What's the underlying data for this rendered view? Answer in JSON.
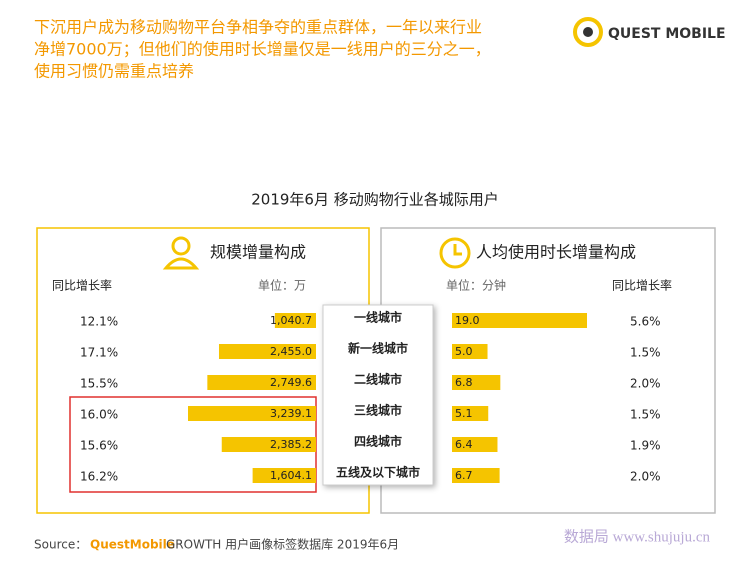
{
  "header": {
    "title_lines": [
      "下沉用户成为移动购物平台争相争夺的重点群体，一年以来行业",
      "净增7000万；但他们的使用时长增量仅是一线用户的三分之一，",
      "使用习惯仍需重点培养"
    ],
    "logo": "QUEST MOBILE"
  },
  "chart_data": {
    "type": "bar",
    "title": "2019年6月 移动购物行业各城际用户",
    "categories": [
      "一线城市",
      "新一线城市",
      "二线城市",
      "三线城市",
      "四线城市",
      "五线及以下城市"
    ],
    "series": [
      {
        "name": "规模增量构成",
        "unit": "单位：万",
        "color": "#f5c400",
        "growth_title": "同比增长率",
        "values": [
          1040.7,
          2455.0,
          2749.6,
          3239.1,
          2385.2,
          1604.1
        ],
        "value_labels": [
          "1,040.7",
          "2,455.0",
          "2,749.6",
          "3,239.1",
          "2,385.2",
          "1,604.1"
        ],
        "growth": [
          12.1,
          17.1,
          15.5,
          16.0,
          15.6,
          16.2
        ],
        "growth_labels": [
          "12.1%",
          "17.1%",
          "15.5%",
          "16.0%",
          "15.6%",
          "16.2%"
        ]
      },
      {
        "name": "人均使用时长增量构成",
        "unit": "单位：分钟",
        "color": "#f5c400",
        "growth_title": "同比增长率",
        "values": [
          19.0,
          5.0,
          6.8,
          5.1,
          6.4,
          6.7
        ],
        "value_labels": [
          "19.0",
          "5.0",
          "6.8",
          "5.1",
          "6.4",
          "6.7"
        ],
        "growth": [
          5.6,
          1.5,
          2.0,
          1.5,
          1.9,
          2.0
        ],
        "growth_labels": [
          "5.6%",
          "1.5%",
          "2.0%",
          "1.5%",
          "1.9%",
          "2.0%"
        ]
      }
    ]
  },
  "footer": {
    "source_label": "Source：",
    "source_brand": "QuestMobile",
    "source_text": "GROWTH 用户画像标签数据库 2019年6月",
    "watermark": "数据局 www.shujuju.cn"
  }
}
